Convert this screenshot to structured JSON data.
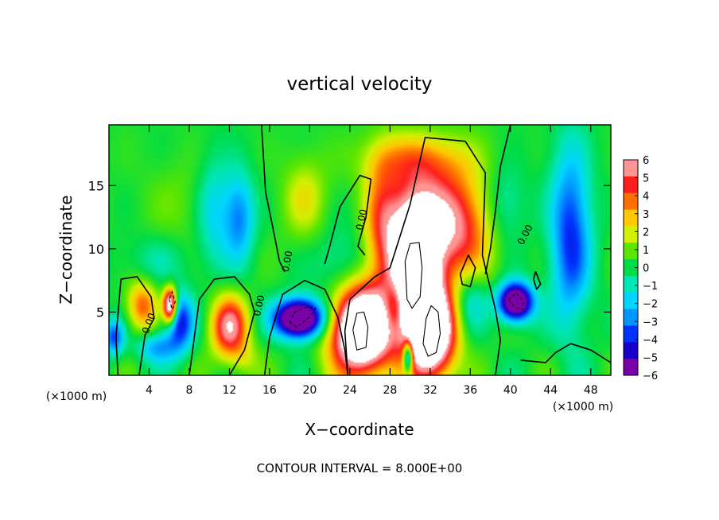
{
  "chart_data": {
    "type": "heatmap",
    "title": "vertical velocity",
    "xlabel": "X−coordinate",
    "ylabel": "Z−coordinate",
    "x_unit_left": "(×1000 m)",
    "x_unit_right": "(×1000 m)",
    "footer": "CONTOUR INTERVAL = 8.000E+00",
    "xlim": [
      0,
      50
    ],
    "ylim": [
      0,
      19.8
    ],
    "x_ticks": [
      4,
      8,
      12,
      16,
      20,
      24,
      28,
      32,
      36,
      40,
      44,
      48
    ],
    "y_ticks": [
      5,
      10,
      15
    ],
    "zero_contour_label": "0.00",
    "colorbar": {
      "range": [
        -6,
        6
      ],
      "ticks": [
        6,
        5,
        4,
        3,
        2,
        1,
        0,
        -1,
        -2,
        -3,
        -4,
        -5,
        -6
      ],
      "tick_labels": [
        "6",
        "5",
        "4",
        "3",
        "2",
        "1",
        "0",
        "−1",
        "−2",
        "−3",
        "−4",
        "−5",
        "−6"
      ],
      "over_color": "#ffffff",
      "colors": [
        {
          "v": -6,
          "c": "#7a00a8"
        },
        {
          "v": -5,
          "c": "#1800c8"
        },
        {
          "v": -4,
          "c": "#0032ff"
        },
        {
          "v": -3,
          "c": "#0096ff"
        },
        {
          "v": -2,
          "c": "#00d6ff"
        },
        {
          "v": -1,
          "c": "#00e6b4"
        },
        {
          "v": 0,
          "c": "#00dc46"
        },
        {
          "v": 1,
          "c": "#5ae600"
        },
        {
          "v": 2,
          "c": "#d2f000"
        },
        {
          "v": 3,
          "c": "#ffc800"
        },
        {
          "v": 4,
          "c": "#ff6e00"
        },
        {
          "v": 5,
          "c": "#ff1e1e"
        },
        {
          "v": 6,
          "c": "#ff9696"
        }
      ]
    },
    "features": [
      {
        "x": 25.2,
        "z": 3.6,
        "rx": 3.0,
        "rz": 3.4,
        "w": 12
      },
      {
        "x": 30.4,
        "z": 8.3,
        "rx": 2.2,
        "rz": 4.6,
        "w": 12
      },
      {
        "x": 32.0,
        "z": 3.4,
        "rx": 2.4,
        "rz": 3.6,
        "w": 11
      },
      {
        "x": 32.0,
        "z": 12.2,
        "rx": 3.8,
        "rz": 3.8,
        "w": 5.5
      },
      {
        "x": 30.5,
        "z": 17.0,
        "rx": 5.0,
        "rz": 2.2,
        "w": 3
      },
      {
        "x": 27.2,
        "z": 12.0,
        "rx": 1.8,
        "rz": 5.0,
        "w": 3.5
      },
      {
        "x": 35.5,
        "z": 11.0,
        "rx": 3.0,
        "rz": 5.0,
        "w": 3
      },
      {
        "x": 12.0,
        "z": 3.8,
        "rx": 1.8,
        "rz": 2.4,
        "w": 6
      },
      {
        "x": 3.3,
        "z": 5.5,
        "rx": 1.5,
        "rz": 2.0,
        "w": 4
      },
      {
        "x": 6.1,
        "z": 5.5,
        "rx": 0.7,
        "rz": 1.4,
        "w": 9
      },
      {
        "x": 19.5,
        "z": 14.0,
        "rx": 2.2,
        "rz": 3.2,
        "w": 2
      },
      {
        "x": 8.0,
        "z": 13.5,
        "rx": 4.5,
        "rz": 3.5,
        "w": 0.8
      },
      {
        "x": 13.5,
        "z": 1.2,
        "rx": 1.5,
        "rz": 1.5,
        "w": 1.2
      },
      {
        "x": 19.0,
        "z": 4.5,
        "rx": 2.4,
        "rz": 1.5,
        "w": -10
      },
      {
        "x": 40.5,
        "z": 5.8,
        "rx": 1.7,
        "rz": 1.5,
        "w": -9
      },
      {
        "x": 46.0,
        "z": 11.0,
        "rx": 2.0,
        "rz": 7.0,
        "w": -4.5
      },
      {
        "x": 13.0,
        "z": 12.5,
        "rx": 1.5,
        "rz": 3.5,
        "w": -3.5
      },
      {
        "x": 10.5,
        "z": 13.0,
        "rx": 1.8,
        "rz": 4.0,
        "w": -2.5
      },
      {
        "x": 7.0,
        "z": 4.2,
        "rx": 1.4,
        "rz": 2.2,
        "w": -5
      },
      {
        "x": 4.8,
        "z": 2.2,
        "rx": 2.0,
        "rz": 1.2,
        "w": -3
      },
      {
        "x": 29.8,
        "z": 1.5,
        "rx": 0.5,
        "rz": 1.3,
        "w": -7
      },
      {
        "x": 28.5,
        "z": 5.5,
        "rx": 1.0,
        "rz": 2.0,
        "w": -3
      },
      {
        "x": 36.0,
        "z": 6.0,
        "rx": 1.8,
        "rz": 2.5,
        "w": -2.5
      },
      {
        "x": 0.5,
        "z": 3.0,
        "rx": 1.0,
        "rz": 1.4,
        "w": -4
      },
      {
        "x": 23.0,
        "z": 8.5,
        "rx": 2.5,
        "rz": 3.0,
        "w": -1.5
      },
      {
        "x": 39.5,
        "z": 13.5,
        "rx": 2.0,
        "rz": 3.0,
        "w": -1.5
      },
      {
        "x": 4.5,
        "z": 9.0,
        "rx": 4.0,
        "rz": 2.0,
        "w": -1
      }
    ],
    "zero_contours": [
      [
        [
          0.9,
          0
        ],
        [
          0.7,
          3.0
        ],
        [
          1.2,
          7.6
        ],
        [
          2.8,
          7.8
        ],
        [
          4.2,
          6.2
        ],
        [
          4.5,
          4.5
        ],
        [
          3.6,
          3.2
        ],
        [
          3.0,
          0
        ]
      ],
      [
        [
          8.0,
          0
        ],
        [
          9.0,
          6.0
        ],
        [
          10.5,
          7.6
        ],
        [
          12.5,
          7.8
        ],
        [
          14.0,
          6.4
        ],
        [
          14.5,
          5.0
        ],
        [
          13.5,
          2.0
        ],
        [
          12.0,
          0
        ]
      ],
      [
        [
          15.5,
          0
        ],
        [
          16.0,
          3.0
        ],
        [
          17.3,
          6.4
        ],
        [
          19.5,
          7.5
        ],
        [
          21.5,
          6.8
        ],
        [
          22.8,
          4.6
        ],
        [
          23.5,
          2.0
        ],
        [
          23.8,
          0
        ]
      ],
      [
        [
          23.8,
          0
        ],
        [
          23.5,
          3.5
        ],
        [
          24.0,
          6.0
        ],
        [
          26.5,
          7.8
        ],
        [
          28.0,
          8.5
        ],
        [
          30.0,
          13.5
        ],
        [
          31.5,
          18.8
        ],
        [
          35.5,
          18.5
        ],
        [
          37.5,
          16.0
        ],
        [
          37.2,
          9.5
        ],
        [
          38.5,
          5.2
        ],
        [
          39.0,
          2.8
        ],
        [
          38.5,
          0
        ]
      ],
      [
        [
          15.2,
          19.8
        ],
        [
          15.6,
          14.5
        ],
        [
          16.5,
          11.0
        ],
        [
          17.0,
          9.0
        ],
        [
          17.5,
          8.2
        ]
      ],
      [
        [
          21.5,
          8.8
        ],
        [
          22.0,
          10.2
        ],
        [
          23.0,
          13.3
        ],
        [
          25.0,
          15.8
        ],
        [
          26.1,
          15.5
        ],
        [
          25.6,
          12.5
        ],
        [
          24.8,
          10.2
        ],
        [
          25.5,
          9.5
        ]
      ],
      [
        [
          40.0,
          19.8
        ],
        [
          39.0,
          16.5
        ],
        [
          38.5,
          13.0
        ],
        [
          38.0,
          10.0
        ],
        [
          37.5,
          8.0
        ]
      ],
      [
        [
          41.0,
          1.2
        ],
        [
          43.5,
          1.0
        ],
        [
          44.5,
          1.8
        ],
        [
          46.0,
          2.5
        ],
        [
          48.0,
          2.0
        ],
        [
          50,
          1.0
        ]
      ],
      [
        [
          35.0,
          8.0
        ],
        [
          35.8,
          9.5
        ],
        [
          36.5,
          8.5
        ],
        [
          36.0,
          7.0
        ],
        [
          35.2,
          7.2
        ],
        [
          35.0,
          8.0
        ]
      ],
      [
        [
          42.5,
          8.2
        ],
        [
          43.0,
          7.2
        ],
        [
          42.6,
          6.8
        ],
        [
          42.3,
          7.6
        ],
        [
          42.5,
          8.2
        ]
      ]
    ],
    "positive_contours": [
      [
        [
          24.3,
          3.6
        ],
        [
          24.7,
          2.0
        ],
        [
          25.6,
          2.2
        ],
        [
          25.8,
          3.8
        ],
        [
          25.4,
          5.0
        ],
        [
          24.7,
          4.9
        ],
        [
          24.3,
          3.6
        ]
      ],
      [
        [
          29.5,
          9.0
        ],
        [
          29.7,
          6.0
        ],
        [
          30.2,
          5.3
        ],
        [
          31.0,
          6.2
        ],
        [
          31.2,
          8.5
        ],
        [
          30.9,
          10.5
        ],
        [
          30.0,
          10.4
        ],
        [
          29.5,
          9.0
        ]
      ],
      [
        [
          31.3,
          2.5
        ],
        [
          31.8,
          1.5
        ],
        [
          32.6,
          1.8
        ],
        [
          33.0,
          3.3
        ],
        [
          32.8,
          5.0
        ],
        [
          32.1,
          5.5
        ],
        [
          31.6,
          4.5
        ],
        [
          31.3,
          2.5
        ]
      ]
    ],
    "negative_contours": [
      [
        [
          18.0,
          4.2
        ],
        [
          18.7,
          3.8
        ],
        [
          20.0,
          4.6
        ],
        [
          20.6,
          5.3
        ],
        [
          19.8,
          5.4
        ],
        [
          18.5,
          5.0
        ],
        [
          18.0,
          4.2
        ]
      ],
      [
        [
          39.8,
          6.0
        ],
        [
          40.4,
          5.4
        ],
        [
          41.2,
          5.2
        ],
        [
          41.3,
          5.8
        ],
        [
          40.6,
          6.5
        ],
        [
          39.8,
          6.0
        ]
      ],
      [
        [
          6.0,
          6.0
        ],
        [
          6.3,
          5.2
        ],
        [
          6.6,
          5.8
        ],
        [
          6.3,
          6.6
        ],
        [
          6.0,
          6.0
        ]
      ]
    ],
    "zero_contour_labels": [
      {
        "x": 4.0,
        "z": 4.1,
        "angle": -70
      },
      {
        "x": 15.0,
        "z": 5.5,
        "angle": -78
      },
      {
        "x": 17.8,
        "z": 9.0,
        "angle": -80
      },
      {
        "x": 25.2,
        "z": 12.3,
        "angle": -78
      },
      {
        "x": 41.5,
        "z": 11.1,
        "angle": -62
      }
    ]
  }
}
